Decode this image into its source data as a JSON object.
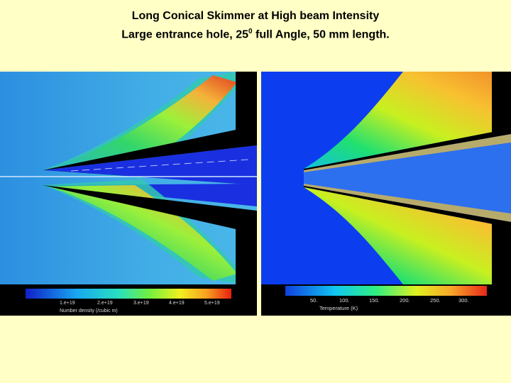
{
  "title": {
    "line1": "Long Conical Skimmer at High beam Intensity",
    "line2_prefix": "Large entrance hole, 25",
    "line2_sup": "0",
    "line2_suffix": " full Angle, 50 mm length."
  },
  "left_panel": {
    "colorbar_ticks": [
      "1.e+19",
      "2.e+19",
      "3.e+19",
      "4.e+19",
      "5.e+19"
    ],
    "colorbar_label": "Number density  (/cubic m)"
  },
  "right_panel": {
    "colorbar_ticks": [
      "50.",
      "100.",
      "150.",
      "200.",
      "250.",
      "300."
    ],
    "colorbar_label": "Temperature  (K)"
  },
  "colors": {
    "background": "#ffffc6",
    "density_bg": "#3da6e6",
    "temperature_bg": "#0c3ef0",
    "skimmer": "#000000"
  }
}
